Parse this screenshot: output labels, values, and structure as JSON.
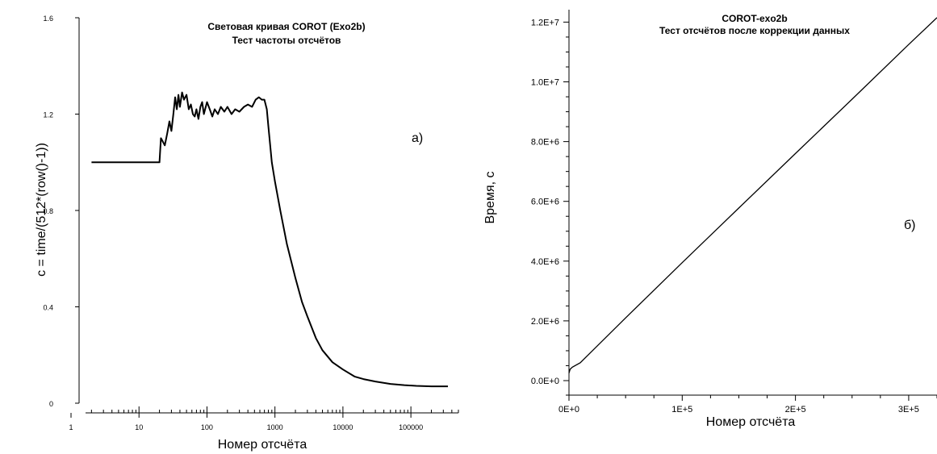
{
  "chart_data": [
    {
      "type": "line",
      "title": "Световая кривая  COROT (Exo2b)",
      "subtitle": "Тест частоты отсчётов",
      "xlabel": "Номер отсчёта",
      "ylabel": "c = time/(512*(row()-1))",
      "panel_label": "а)",
      "xscale": "log",
      "xlim": [
        1,
        500000
      ],
      "ylim": [
        0,
        1.6
      ],
      "xticks": [
        {
          "value": 1,
          "label": "1"
        },
        {
          "value": 10,
          "label": "10"
        },
        {
          "value": 100,
          "label": "100"
        },
        {
          "value": 1000,
          "label": "1000"
        },
        {
          "value": 10000,
          "label": "10000"
        },
        {
          "value": 100000,
          "label": "100000"
        }
      ],
      "yticks": [
        {
          "value": 0,
          "label": "0"
        },
        {
          "value": 0.4,
          "label": "0.4"
        },
        {
          "value": 0.8,
          "label": "0.8"
        },
        {
          "value": 1.2,
          "label": "1.2"
        },
        {
          "value": 1.6,
          "label": "1.6"
        }
      ],
      "grid": false,
      "series": [
        {
          "x": [
            2,
            20,
            21,
            22,
            24,
            26,
            28,
            30,
            32,
            34,
            36,
            38,
            40,
            43,
            46,
            50,
            54,
            58,
            62,
            66,
            70,
            75,
            80,
            85,
            90,
            100,
            110,
            120,
            130,
            145,
            160,
            180,
            200,
            230,
            260,
            300,
            350,
            400,
            460,
            520,
            580,
            640,
            700,
            760,
            800,
            900,
            1000,
            1200,
            1500,
            2000,
            2500,
            3000,
            4000,
            5000,
            7000,
            10000,
            15000,
            20000,
            30000,
            50000,
            80000,
            120000,
            200000,
            350000
          ],
          "y": [
            1.0,
            1.0,
            1.1,
            1.09,
            1.07,
            1.12,
            1.17,
            1.13,
            1.2,
            1.27,
            1.22,
            1.28,
            1.23,
            1.29,
            1.26,
            1.28,
            1.22,
            1.24,
            1.2,
            1.19,
            1.22,
            1.18,
            1.23,
            1.25,
            1.2,
            1.25,
            1.22,
            1.19,
            1.22,
            1.2,
            1.23,
            1.21,
            1.23,
            1.2,
            1.22,
            1.21,
            1.23,
            1.24,
            1.23,
            1.26,
            1.27,
            1.26,
            1.26,
            1.22,
            1.15,
            1.0,
            0.92,
            0.8,
            0.66,
            0.52,
            0.42,
            0.36,
            0.27,
            0.22,
            0.17,
            0.14,
            0.11,
            0.1,
            0.09,
            0.08,
            0.075,
            0.072,
            0.07,
            0.07
          ]
        }
      ]
    },
    {
      "type": "line",
      "title": "COROT-exo2b",
      "subtitle": "Тест отсчётов после коррекции данных",
      "xlabel": "Номер отсчёта",
      "ylabel": "Время, с",
      "panel_label": "б)",
      "xlim": [
        0,
        325000
      ],
      "ylim": [
        0,
        12200000
      ],
      "xticks": [
        {
          "value": 0,
          "label": "0E+0"
        },
        {
          "value": 100000,
          "label": "1E+5"
        },
        {
          "value": 200000,
          "label": "2E+5"
        },
        {
          "value": 300000,
          "label": "3E+5"
        }
      ],
      "yticks": [
        {
          "value": 0,
          "label": "0.0E+0"
        },
        {
          "value": 2000000,
          "label": "2.0E+6"
        },
        {
          "value": 4000000,
          "label": "4.0E+6"
        },
        {
          "value": 6000000,
          "label": "6.0E+6"
        },
        {
          "value": 8000000,
          "label": "8.0E+6"
        },
        {
          "value": 10000000,
          "label": "1.0E+7"
        },
        {
          "value": 12000000,
          "label": "1.2E+7"
        }
      ],
      "grid": false,
      "series": [
        {
          "x": [
            0,
            1000,
            3000,
            10000,
            50000,
            100000,
            150000,
            200000,
            250000,
            300000,
            325000
          ],
          "y": [
            250000,
            380000,
            450000,
            600000,
            2100000,
            3950000,
            5780000,
            7600000,
            9420000,
            11250000,
            12150000
          ]
        }
      ]
    }
  ]
}
